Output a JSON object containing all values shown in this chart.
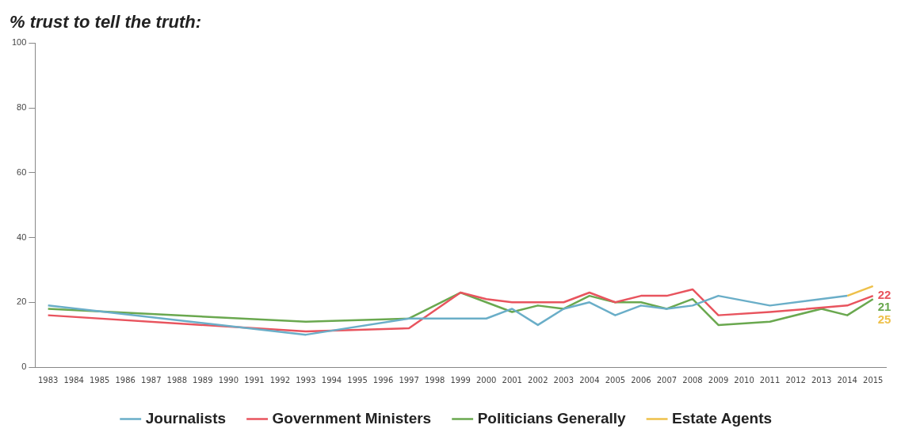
{
  "chart_data": {
    "type": "line",
    "title": "% trust to tell the truth:",
    "categories": [
      "1983",
      "1984",
      "1985",
      "1986",
      "1987",
      "1988",
      "1989",
      "1990",
      "1991",
      "1992",
      "1993",
      "1994",
      "1995",
      "1996",
      "1997",
      "1998",
      "1999",
      "2000",
      "2001",
      "2002",
      "2003",
      "2004",
      "2005",
      "2006",
      "2007",
      "2008",
      "2009",
      "2010",
      "2011",
      "2012",
      "2013",
      "2014",
      "2015"
    ],
    "ylim": [
      0,
      100
    ],
    "yticks": [
      0,
      20,
      40,
      60,
      80,
      100
    ],
    "grid": false,
    "legend": "bottom",
    "marker": "none",
    "line_style": "solid",
    "series": [
      {
        "name": "Journalists",
        "color": "#6aaec8",
        "values": [
          19,
          null,
          null,
          null,
          null,
          null,
          null,
          null,
          null,
          null,
          10,
          null,
          null,
          null,
          15,
          null,
          15,
          15,
          18,
          13,
          18,
          20,
          16,
          19,
          18,
          19,
          22,
          null,
          19,
          null,
          null,
          22,
          null
        ]
      },
      {
        "name": "Government Ministers",
        "color": "#e8545e",
        "values": [
          16,
          null,
          null,
          null,
          null,
          null,
          null,
          null,
          null,
          null,
          11,
          null,
          null,
          null,
          12,
          null,
          23,
          21,
          20,
          20,
          20,
          23,
          20,
          22,
          22,
          24,
          16,
          null,
          17,
          null,
          null,
          19,
          22
        ],
        "value_labels": [
          null,
          null,
          null,
          null,
          null,
          null,
          null,
          null,
          null,
          null,
          null,
          null,
          null,
          null,
          null,
          null,
          null,
          null,
          null,
          null,
          null,
          null,
          null,
          null,
          null,
          null,
          null,
          null,
          null,
          null,
          null,
          null,
          "22"
        ]
      },
      {
        "name": "Politicians Generally",
        "color": "#6aa84f",
        "values": [
          18,
          null,
          null,
          null,
          null,
          null,
          null,
          null,
          null,
          null,
          14,
          null,
          null,
          null,
          15,
          null,
          23,
          20,
          17,
          19,
          18,
          22,
          20,
          20,
          18,
          21,
          13,
          null,
          14,
          null,
          18,
          16,
          21
        ],
        "value_labels": [
          null,
          null,
          null,
          null,
          null,
          null,
          null,
          null,
          null,
          null,
          null,
          null,
          null,
          null,
          null,
          null,
          null,
          null,
          null,
          null,
          null,
          null,
          null,
          null,
          null,
          null,
          null,
          null,
          null,
          null,
          null,
          null,
          "21"
        ]
      },
      {
        "name": "Estate Agents",
        "color": "#eec04a",
        "values": [
          null,
          null,
          null,
          null,
          null,
          null,
          null,
          null,
          null,
          null,
          null,
          null,
          null,
          null,
          null,
          null,
          null,
          null,
          null,
          null,
          null,
          null,
          null,
          null,
          null,
          null,
          null,
          null,
          null,
          null,
          null,
          22,
          25
        ],
        "value_labels": [
          null,
          null,
          null,
          null,
          null,
          null,
          null,
          null,
          null,
          null,
          null,
          null,
          null,
          null,
          null,
          null,
          null,
          null,
          null,
          null,
          null,
          null,
          null,
          null,
          null,
          null,
          null,
          null,
          null,
          null,
          null,
          null,
          "25"
        ]
      }
    ]
  }
}
